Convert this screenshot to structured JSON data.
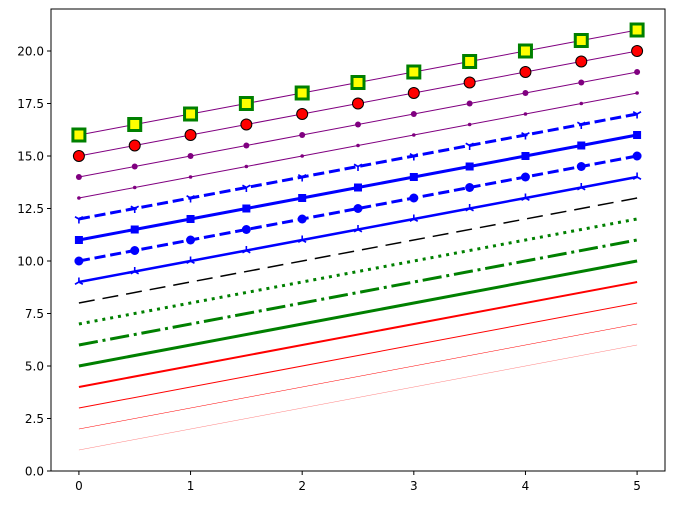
{
  "chart_data": {
    "type": "line",
    "title": "",
    "xlabel": "",
    "ylabel": "",
    "xlim": [
      -0.25,
      5.25
    ],
    "ylim": [
      0,
      22
    ],
    "grid": false,
    "x_ticks": [
      "0",
      "1",
      "2",
      "3",
      "4",
      "5"
    ],
    "y_ticks": [
      "0.0",
      "2.5",
      "5.0",
      "7.5",
      "10.0",
      "12.5",
      "15.0",
      "17.5",
      "20.0"
    ],
    "series": [
      {
        "x": [
          0,
          5
        ],
        "y": [
          1,
          6
        ],
        "color": "#ff0000",
        "linewidth": 0.25,
        "linestyle": "solid"
      },
      {
        "x": [
          0,
          5
        ],
        "y": [
          2,
          7
        ],
        "color": "#ff0000",
        "linewidth": 0.5,
        "linestyle": "solid"
      },
      {
        "x": [
          0,
          5
        ],
        "y": [
          3,
          8
        ],
        "color": "#ff0000",
        "linewidth": 1,
        "linestyle": "solid"
      },
      {
        "x": [
          0,
          5
        ],
        "y": [
          4,
          9
        ],
        "color": "#ff0000",
        "linewidth": 2,
        "linestyle": "solid"
      },
      {
        "x": [
          0,
          5
        ],
        "y": [
          5,
          10
        ],
        "color": "#008000",
        "linewidth": 3,
        "linestyle": "solid"
      },
      {
        "x": [
          0,
          5
        ],
        "y": [
          6,
          11
        ],
        "color": "#008000",
        "linewidth": 3,
        "linestyle": "dashdot"
      },
      {
        "x": [
          0,
          5
        ],
        "y": [
          7,
          12
        ],
        "color": "#008000",
        "linewidth": 3,
        "linestyle": "dotted"
      },
      {
        "x": [
          0,
          5
        ],
        "y": [
          8,
          13
        ],
        "color": "#000000",
        "linewidth": 1.5,
        "linestyle": "longdash"
      },
      {
        "x": [
          0,
          0.5,
          1,
          1.5,
          2,
          2.5,
          3,
          3.5,
          4,
          4.5,
          5
        ],
        "y": [
          9,
          9.5,
          10,
          10.5,
          11,
          11.5,
          12,
          12.5,
          13,
          13.5,
          14
        ],
        "color": "#0000ff",
        "linewidth": 2.5,
        "linestyle": "solid",
        "marker": "tri"
      },
      {
        "x": [
          0,
          0.5,
          1,
          1.5,
          2,
          2.5,
          3,
          3.5,
          4,
          4.5,
          5
        ],
        "y": [
          10,
          10.5,
          11,
          11.5,
          12,
          12.5,
          13,
          13.5,
          14,
          14.5,
          15
        ],
        "color": "#0000ff",
        "linewidth": 3,
        "linestyle": "dashed",
        "marker": "circle"
      },
      {
        "x": [
          0,
          0.5,
          1,
          1.5,
          2,
          2.5,
          3,
          3.5,
          4,
          4.5,
          5
        ],
        "y": [
          11,
          11.5,
          12,
          12.5,
          13,
          13.5,
          14,
          14.5,
          15,
          15.5,
          16
        ],
        "color": "#0000ff",
        "linewidth": 3,
        "linestyle": "solid",
        "marker": "square"
      },
      {
        "x": [
          0,
          0.5,
          1,
          1.5,
          2,
          2.5,
          3,
          3.5,
          4,
          4.5,
          5
        ],
        "y": [
          12,
          12.5,
          13,
          13.5,
          14,
          14.5,
          15,
          15.5,
          16,
          16.5,
          17
        ],
        "color": "#0000ff",
        "linewidth": 3,
        "linestyle": "dashed",
        "marker": "tri_down"
      },
      {
        "x": [
          0,
          0.5,
          1,
          1.5,
          2,
          2.5,
          3,
          3.5,
          4,
          4.5,
          5
        ],
        "y": [
          13,
          13.5,
          14,
          14.5,
          15,
          15.5,
          16,
          16.5,
          17,
          17.5,
          18
        ],
        "color": "#800080",
        "linewidth": 1,
        "linestyle": "solid",
        "marker": "point"
      },
      {
        "x": [
          0,
          0.5,
          1,
          1.5,
          2,
          2.5,
          3,
          3.5,
          4,
          4.5,
          5
        ],
        "y": [
          14,
          14.5,
          15,
          15.5,
          16,
          16.5,
          17,
          17.5,
          18,
          18.5,
          19
        ],
        "color": "#800080",
        "linewidth": 1,
        "linestyle": "solid",
        "marker": "dot"
      },
      {
        "x": [
          0,
          0.5,
          1,
          1.5,
          2,
          2.5,
          3,
          3.5,
          4,
          4.5,
          5
        ],
        "y": [
          15,
          15.5,
          16,
          16.5,
          17,
          17.5,
          18,
          18.5,
          19,
          19.5,
          20
        ],
        "color": "#800080",
        "linewidth": 1,
        "linestyle": "solid",
        "marker": "big-circle",
        "marker_face": "#ff0000",
        "marker_edge": "#000000"
      },
      {
        "x": [
          0,
          0.5,
          1,
          1.5,
          2,
          2.5,
          3,
          3.5,
          4,
          4.5,
          5
        ],
        "y": [
          16,
          16.5,
          17,
          17.5,
          18,
          18.5,
          19,
          19.5,
          20,
          20.5,
          21
        ],
        "color": "#800080",
        "linewidth": 1,
        "linestyle": "solid",
        "marker": "big-square",
        "marker_face": "#ffff00",
        "marker_edge": "#008000"
      }
    ]
  }
}
